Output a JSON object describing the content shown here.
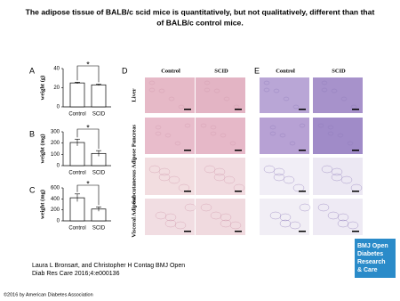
{
  "title_lines": [
    "The adipose tissue of BALB/c scid mice is quantitatively, but not qualitatively, different than that",
    "of BALB/c control mice."
  ],
  "chart_data": [
    {
      "type": "bar",
      "panel": "A",
      "ylabel": "weight (g)",
      "categories": [
        "Control",
        "SCID"
      ],
      "values": [
        25,
        23
      ],
      "errors": [
        0.8,
        0.8
      ],
      "color": "#ffffff",
      "ylim": [
        0,
        40
      ],
      "yticks": [
        0,
        20,
        40
      ],
      "annotation": "*"
    },
    {
      "type": "bar",
      "panel": "B",
      "ylabel": "weight (mg)",
      "categories": [
        "Control",
        "SCID"
      ],
      "values": [
        205,
        108
      ],
      "errors": [
        30,
        25
      ],
      "color": "#ffffff",
      "ylim": [
        0,
        300
      ],
      "yticks": [
        0,
        100,
        200,
        300
      ],
      "annotation": "*"
    },
    {
      "type": "bar",
      "panel": "C",
      "ylabel": "weight (mg)",
      "categories": [
        "Control",
        "SCID"
      ],
      "values": [
        420,
        215
      ],
      "errors": [
        70,
        40
      ],
      "color": "#ffffff",
      "ylim": [
        0,
        600
      ],
      "yticks": [
        0,
        200,
        400,
        600
      ],
      "annotation": "*"
    }
  ],
  "histology": {
    "panels": [
      "D",
      "E"
    ],
    "columns": [
      "Control",
      "SCID"
    ],
    "rows": [
      "Liver",
      "Pancreas",
      "Subcutaneous Adipose",
      "Visceral Adipose"
    ]
  },
  "citation": [
    "Laura L Bronsart, and Christopher H Contag BMJ Open",
    "Diab Res Care 2016;4:e000136"
  ],
  "logo": [
    "BMJ Open",
    "Diabetes",
    "Research",
    "& Care"
  ],
  "copyright": "©2016 by American Diabetes Association"
}
